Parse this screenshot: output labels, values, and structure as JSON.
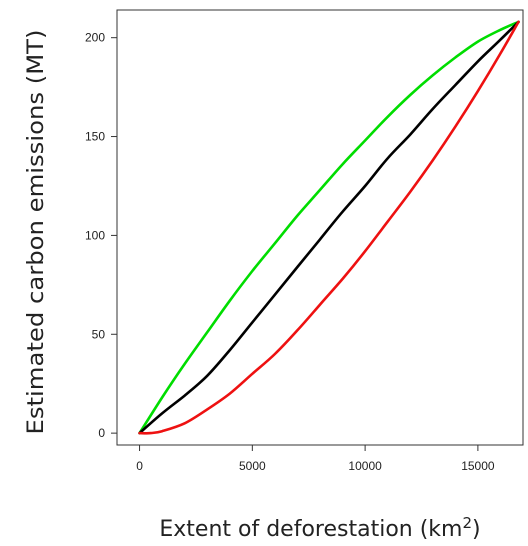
{
  "chart_data": {
    "type": "line",
    "xlabel": "Extent of deforestation (km",
    "xlabel_superscript": "2",
    "xlabel_suffix": ")",
    "ylabel": "Estimated carbon emissions (MT)",
    "xlim": [
      -1000,
      17000
    ],
    "ylim": [
      -6,
      214
    ],
    "x_ticks": [
      0,
      5000,
      10000,
      15000
    ],
    "x_tick_labels": [
      "0",
      "5000",
      "10000",
      "15000"
    ],
    "y_ticks": [
      0,
      50,
      100,
      150,
      200
    ],
    "y_tick_labels": [
      "0",
      "50",
      "100",
      "150",
      "200"
    ],
    "grid": false,
    "legend": "none",
    "series": [
      {
        "color": "#00dd00",
        "x": [
          0,
          1000,
          2000,
          3000,
          4000,
          5000,
          6000,
          7000,
          8000,
          9000,
          10000,
          11000,
          12000,
          13000,
          14000,
          15000,
          16000,
          16800
        ],
        "values": [
          0,
          18,
          35,
          51,
          67,
          82,
          96,
          110,
          123,
          136,
          148,
          160,
          171,
          181,
          190,
          198,
          204,
          208
        ]
      },
      {
        "color": "#000000",
        "x": [
          0,
          1000,
          2000,
          3000,
          4000,
          5000,
          6000,
          7000,
          8000,
          9000,
          10000,
          11000,
          12000,
          13000,
          14000,
          15000,
          16000,
          16800
        ],
        "values": [
          0,
          10,
          19,
          29,
          42,
          56,
          70,
          84,
          98,
          112,
          125,
          139,
          151,
          164,
          176,
          188,
          199,
          208
        ]
      },
      {
        "color": "#ee1111",
        "x": [
          0,
          500,
          1000,
          2000,
          3000,
          4000,
          5000,
          6000,
          7000,
          8000,
          9000,
          10000,
          11000,
          12000,
          13000,
          14000,
          15000,
          16000,
          16800
        ],
        "values": [
          0,
          0,
          1,
          5,
          12,
          20,
          30,
          40,
          52,
          65,
          78,
          92,
          107,
          122,
          138,
          155,
          173,
          192,
          208
        ]
      }
    ]
  }
}
